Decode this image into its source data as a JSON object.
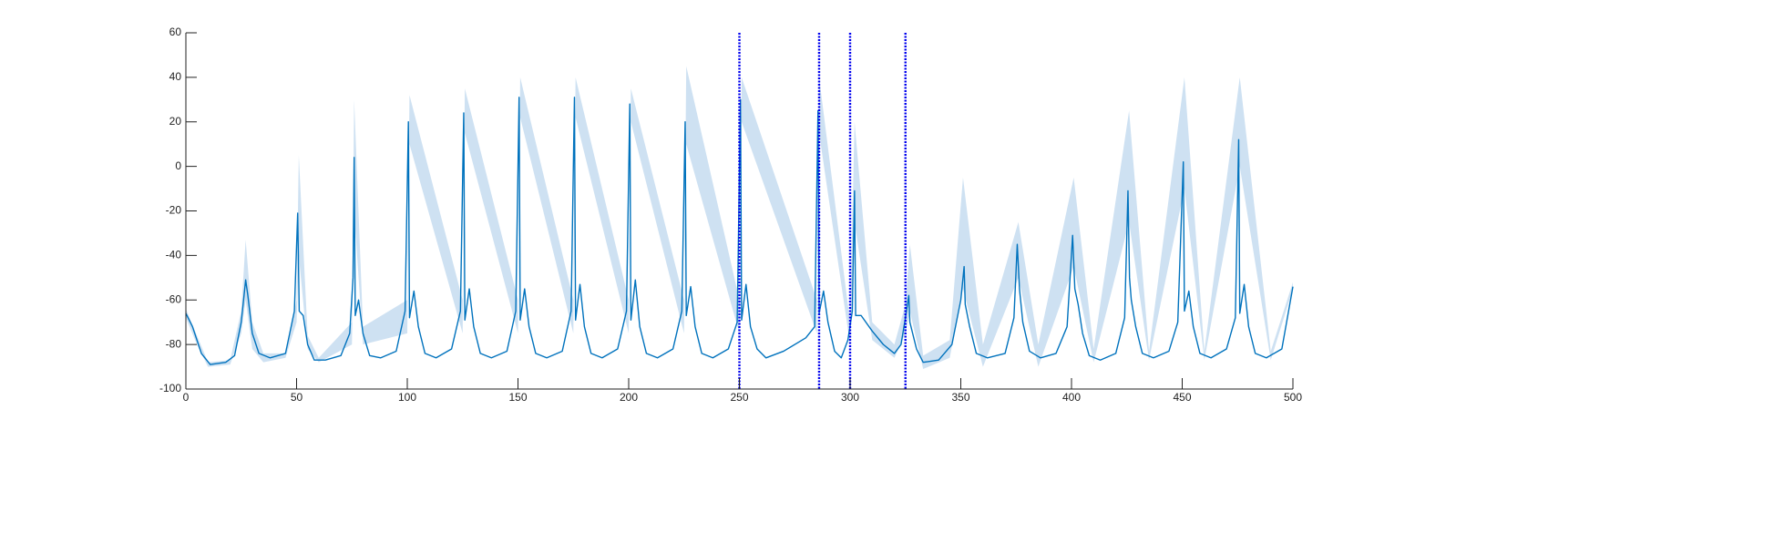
{
  "chart_data": {
    "type": "line",
    "x": [
      0,
      3,
      7,
      11,
      18,
      22,
      25,
      27,
      28,
      30,
      33,
      38,
      45,
      49,
      50.5,
      51.2,
      53,
      55,
      58,
      63,
      70,
      74,
      75.5,
      76,
      76.5,
      78,
      80,
      83,
      88,
      95,
      99,
      100.5,
      101,
      103,
      105,
      108,
      113,
      120,
      124,
      125.5,
      126,
      128,
      130,
      133,
      138,
      145,
      149,
      150.5,
      151,
      153,
      155,
      158,
      163,
      170,
      174,
      175.5,
      176,
      178,
      180,
      183,
      188,
      195,
      199,
      200.5,
      201,
      203,
      205,
      208,
      213,
      220,
      224,
      225.5,
      226,
      228,
      230,
      233,
      238,
      245,
      249,
      250.5,
      251,
      253,
      255,
      258,
      262,
      270,
      280,
      284,
      285.5,
      286,
      288,
      290,
      293,
      296,
      299,
      301,
      302,
      302.5,
      305,
      310,
      315,
      320,
      323,
      325,
      326.5,
      327,
      330,
      333,
      340,
      346,
      350,
      351,
      351.5,
      352,
      354,
      357,
      362,
      370,
      374,
      375.5,
      376.5,
      378,
      381,
      386,
      393,
      398,
      400.5,
      401.5,
      403,
      405,
      408,
      413,
      420,
      424,
      425.5,
      426.2,
      427,
      429,
      432,
      437,
      444,
      448,
      450.5,
      451,
      453,
      455,
      458,
      463,
      470,
      474,
      475.5,
      476,
      478,
      480,
      483,
      488,
      495,
      500
    ],
    "series": [
      {
        "color": "#0072bd",
        "values": [
          -66,
          -72,
          -84,
          -89,
          -88,
          -85,
          -70,
          -51,
          -58,
          -75,
          -84,
          -86,
          -84,
          -65,
          -21,
          -65,
          -67,
          -80,
          -87,
          -87,
          -85,
          -75,
          -50,
          4,
          -67,
          -60,
          -75,
          -85,
          -86,
          -83,
          -65,
          20,
          -68,
          -56,
          -72,
          -84,
          -86,
          -82,
          -65,
          24,
          -69,
          -55,
          -72,
          -84,
          -86,
          -83,
          -65,
          31,
          -69,
          -55,
          -72,
          -84,
          -86,
          -83,
          -65,
          31,
          -69,
          -53,
          -72,
          -84,
          -86,
          -82,
          -65,
          28,
          -69,
          -51,
          -72,
          -84,
          -86,
          -82,
          -65,
          20,
          -67,
          -54,
          -72,
          -84,
          -86,
          -82,
          -70,
          30,
          -69,
          -53,
          -72,
          -82,
          -86,
          -83,
          -77,
          -72,
          25,
          -66,
          -56,
          -70,
          -83,
          -86,
          -78,
          -65,
          -11,
          -67,
          -67,
          -74,
          -80,
          -84,
          -80,
          -68,
          -58,
          -70,
          -82,
          -88,
          -87,
          -80,
          -60,
          -50,
          -45,
          -62,
          -72,
          -84,
          -86,
          -84,
          -68,
          -35,
          -55,
          -70,
          -83,
          -86,
          -84,
          -72,
          -31,
          -55,
          -62,
          -75,
          -85,
          -87,
          -84,
          -68,
          -11,
          -50,
          -60,
          -72,
          -84,
          -86,
          -83,
          -70,
          2,
          -65,
          -56,
          -72,
          -84,
          -86,
          -82,
          -68,
          12,
          -66,
          -53,
          -72,
          -84,
          -86,
          -82,
          -54
        ]
      }
    ],
    "band": {
      "color": "#c6dcf0",
      "x": [
        0,
        5,
        10,
        20,
        25,
        27,
        30,
        35,
        45,
        50,
        51,
        55,
        60,
        75,
        76,
        80,
        100,
        101,
        125,
        126,
        150,
        151,
        175,
        176,
        200,
        201,
        225,
        226,
        250,
        251,
        285,
        286,
        300,
        302,
        310,
        320,
        325,
        327,
        333,
        345,
        351,
        360,
        376,
        385,
        401,
        410,
        426,
        435,
        451,
        460,
        476,
        490,
        500
      ],
      "lower": [
        -68,
        -80,
        -90,
        -89,
        -75,
        -60,
        -82,
        -88,
        -86,
        -70,
        -40,
        -82,
        -88,
        -80,
        -20,
        -80,
        -75,
        10,
        -75,
        15,
        -75,
        22,
        -75,
        22,
        -75,
        20,
        -75,
        10,
        -75,
        20,
        -75,
        15,
        -80,
        -25,
        -78,
        -86,
        -75,
        -65,
        -91,
        -86,
        -55,
        -90,
        -50,
        -90,
        -45,
        -88,
        -25,
        -87,
        -10,
        -87,
        0,
        -87,
        -55
      ],
      "upper": [
        -64,
        -76,
        -88,
        -87,
        -65,
        -33,
        -70,
        -84,
        -84,
        -60,
        5,
        -76,
        -86,
        -70,
        30,
        -72,
        -60,
        32,
        -60,
        35,
        -60,
        40,
        -60,
        40,
        -60,
        35,
        -60,
        45,
        -60,
        40,
        -60,
        40,
        -70,
        20,
        -70,
        -80,
        -62,
        -35,
        -85,
        -78,
        -5,
        -80,
        -25,
        -80,
        -5,
        -82,
        25,
        -83,
        40,
        -83,
        40,
        -83,
        -52
      ]
    },
    "vlines": [
      250,
      286,
      300,
      325
    ],
    "vline_color": "#0000ee",
    "xlim": [
      0,
      500
    ],
    "xticks": [
      0,
      50,
      100,
      150,
      200,
      250,
      300,
      350,
      400,
      450,
      500
    ],
    "ylim": [
      -100,
      60
    ],
    "yticks": [
      -100,
      -80,
      -60,
      -40,
      -20,
      0,
      20,
      40,
      60
    ]
  }
}
